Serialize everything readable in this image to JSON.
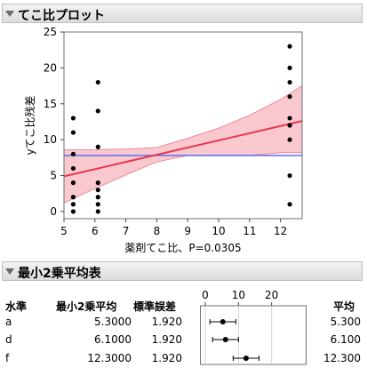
{
  "contrast_panel": {
    "title": "てこ比プロット"
  },
  "chart_data": {
    "type": "scatter",
    "title": "",
    "xlabel": "薬剤てこ比、P=0.0305",
    "ylabel": "yてこ比残差",
    "xlim": [
      5,
      12.7
    ],
    "ylim": [
      -1,
      25
    ],
    "x_ticks": [
      5,
      6,
      7,
      8,
      9,
      10,
      11,
      12
    ],
    "y_ticks": [
      0,
      5,
      10,
      15,
      20,
      25
    ],
    "grid": false,
    "points": [
      {
        "x": 5.3,
        "y": 13
      },
      {
        "x": 5.3,
        "y": 11
      },
      {
        "x": 5.3,
        "y": 8
      },
      {
        "x": 5.3,
        "y": 6
      },
      {
        "x": 5.3,
        "y": 4
      },
      {
        "x": 5.3,
        "y": 2
      },
      {
        "x": 5.3,
        "y": 1
      },
      {
        "x": 5.3,
        "y": 0
      },
      {
        "x": 6.1,
        "y": 18
      },
      {
        "x": 6.1,
        "y": 14
      },
      {
        "x": 6.1,
        "y": 9
      },
      {
        "x": 6.1,
        "y": 4
      },
      {
        "x": 6.1,
        "y": 3
      },
      {
        "x": 6.1,
        "y": 2
      },
      {
        "x": 6.1,
        "y": 1
      },
      {
        "x": 6.1,
        "y": 0
      },
      {
        "x": 12.3,
        "y": 23
      },
      {
        "x": 12.3,
        "y": 20
      },
      {
        "x": 12.3,
        "y": 18
      },
      {
        "x": 12.3,
        "y": 16
      },
      {
        "x": 12.3,
        "y": 13
      },
      {
        "x": 12.3,
        "y": 12
      },
      {
        "x": 12.3,
        "y": 10
      },
      {
        "x": 12.3,
        "y": 5
      },
      {
        "x": 12.3,
        "y": 1
      }
    ],
    "fit_line": {
      "x": [
        5,
        12.7
      ],
      "y": [
        4.9,
        12.6
      ],
      "color": "#e8374e"
    },
    "confidence_band": {
      "x": [
        5,
        6,
        7,
        8,
        9,
        10,
        11,
        12,
        12.7
      ],
      "upper": [
        8.6,
        8.6,
        8.7,
        8.9,
        10.2,
        11.6,
        13.4,
        15.6,
        17.5
      ],
      "lower": [
        1.2,
        3.2,
        5.1,
        6.9,
        7.8,
        7.8,
        7.8,
        8.2,
        8.2
      ],
      "color": "#f9c9cf"
    },
    "reference_line": {
      "y": 7.8,
      "color": "#5b6ef0"
    }
  },
  "lsm_panel": {
    "title": "最小2乗平均表"
  },
  "lsm_table": {
    "headers": {
      "level": "水準",
      "lsmean": "最小2乗平均",
      "stderr": "標準誤差",
      "mean": "平均"
    },
    "axis_ticks": [
      "0",
      "10",
      "20"
    ],
    "rows": [
      {
        "level": "a",
        "lsmean": "5.3000",
        "stderr": "1.920",
        "mean": "5.300",
        "est": 5.3,
        "lo": 1.4,
        "hi": 9.2
      },
      {
        "level": "d",
        "lsmean": "6.1000",
        "stderr": "1.920",
        "mean": "6.100",
        "est": 6.1,
        "lo": 2.2,
        "hi": 10.0
      },
      {
        "level": "f",
        "lsmean": "12.3000",
        "stderr": "1.920",
        "mean": "12.300",
        "est": 12.3,
        "lo": 8.4,
        "hi": 16.2
      }
    ]
  }
}
